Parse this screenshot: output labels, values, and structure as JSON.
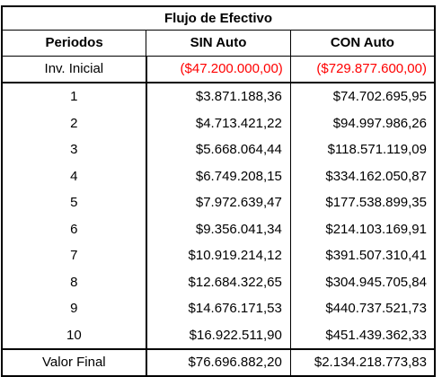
{
  "table": {
    "title": "Flujo de Efectivo",
    "headers": [
      "Periodos",
      "SIN Auto",
      "CON Auto"
    ],
    "initial": {
      "label": "Inv. Inicial",
      "sin": "($47.200.000,00)",
      "con": "($729.877.600,00)"
    },
    "rows": [
      {
        "period": "1",
        "sin": "$3.871.188,36",
        "con": "$74.702.695,95"
      },
      {
        "period": "2",
        "sin": "$4.713.421,22",
        "con": "$94.997.986,26"
      },
      {
        "period": "3",
        "sin": "$5.668.064,44",
        "con": "$118.571.119,09"
      },
      {
        "period": "4",
        "sin": "$6.749.208,15",
        "con": "$334.162.050,87"
      },
      {
        "period": "5",
        "sin": "$7.972.639,47",
        "con": "$177.538.899,35"
      },
      {
        "period": "6",
        "sin": "$9.356.041,34",
        "con": "$214.103.169,91"
      },
      {
        "period": "7",
        "sin": "$10.919.214,12",
        "con": "$391.507.310,41"
      },
      {
        "period": "8",
        "sin": "$12.684.322,65",
        "con": "$304.945.705,84"
      },
      {
        "period": "9",
        "sin": "$14.676.171,53",
        "con": "$440.737.521,73"
      },
      {
        "period": "10",
        "sin": "$16.922.511,90",
        "con": "$451.439.362,33"
      }
    ],
    "final": {
      "label": "Valor Final",
      "sin": "$76.696.882,20",
      "con": "$2.134.218.773,83"
    }
  }
}
